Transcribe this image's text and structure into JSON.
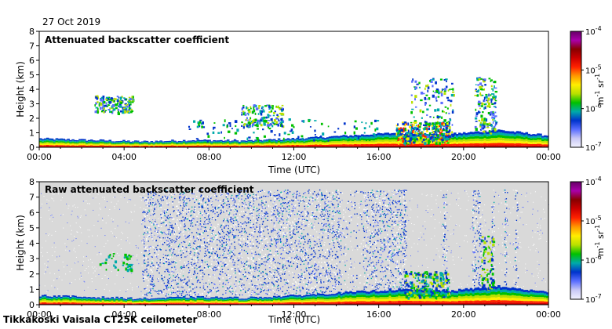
{
  "date": "27 Oct 2019",
  "footer": "Tikkakoski Vaisala CT25K ceilometer",
  "colorbar": {
    "unit_m": "m",
    "unit_m_exp": "-1",
    "unit_sr": " sr",
    "unit_sr_exp": "-1",
    "ticks": [
      {
        "base": "10",
        "exp": "-4",
        "value": 0.0001
      },
      {
        "base": "10",
        "exp": "-5",
        "value": 1e-05
      },
      {
        "base": "10",
        "exp": "-6",
        "value": 1e-06
      },
      {
        "base": "10",
        "exp": "-7",
        "value": 1e-07
      }
    ],
    "colors": [
      "#f2f2ff",
      "#c8c8f5",
      "#5a6eff",
      "#0033cc",
      "#00aaaa",
      "#00c000",
      "#b8e000",
      "#ffee00",
      "#ff9900",
      "#ff2200",
      "#cc0000",
      "#880000",
      "#aa00aa",
      "#660066"
    ]
  },
  "chart_data": [
    {
      "type": "heatmap",
      "title": "Attenuated backscatter coefficient",
      "xlabel": "Time (UTC)",
      "ylabel": "Height (km)",
      "xlim": [
        0,
        24
      ],
      "ylim": [
        0,
        8
      ],
      "x_ticks": [
        "00:00",
        "04:00",
        "08:00",
        "12:00",
        "16:00",
        "20:00",
        "00:00"
      ],
      "y_ticks": [
        "0",
        "1",
        "2",
        "3",
        "4",
        "5",
        "6",
        "7",
        "8"
      ],
      "background": "#ffffff",
      "features": [
        {
          "name": "boundary layer",
          "t_start": 0,
          "t_end": 24,
          "h_top_km": [
            0.6,
            0.5,
            0.4,
            0.5,
            0.45,
            0.6,
            0.8,
            1.0,
            0.9,
            1.2,
            0.8
          ]
        },
        {
          "name": "mid cloud",
          "t_start": 2.6,
          "t_end": 4.4,
          "h_bottom_km": 2.4,
          "h_top_km": 3.6
        },
        {
          "name": "mid cloud",
          "t_start": 9.5,
          "t_end": 11.5,
          "h_bottom_km": 1.5,
          "h_top_km": 3.0
        },
        {
          "name": "cloud",
          "t_start": 17.5,
          "t_end": 19.5,
          "h_bottom_km": 0.5,
          "h_top_km": 4.8
        },
        {
          "name": "cloud",
          "t_start": 20.5,
          "t_end": 21.5,
          "h_bottom_km": 1.0,
          "h_top_km": 4.9
        }
      ]
    },
    {
      "type": "heatmap",
      "title": "Raw attenuated backscatter coefficient",
      "xlabel": "Time (UTC)",
      "ylabel": "Height (km)",
      "xlim": [
        0,
        24
      ],
      "ylim": [
        0,
        8
      ],
      "x_ticks": [
        "00:00",
        "04:00",
        "08:00",
        "12:00",
        "16:00",
        "20:00",
        "00:00"
      ],
      "y_ticks": [
        "0",
        "1",
        "2",
        "3",
        "4",
        "5",
        "6",
        "7",
        "8"
      ],
      "background": "#d9d9d9",
      "noise_top_km": 7.5,
      "noise_segments": [
        {
          "t_start": 4.85,
          "t_end": 14.2,
          "density": 0.5
        },
        {
          "t_start": 14.2,
          "t_end": 15.2,
          "density": 0.15
        },
        {
          "t_start": 15.25,
          "t_end": 17.3,
          "density": 0.55
        },
        {
          "t_start": 19.0,
          "t_end": 19.2,
          "density": 0.55
        },
        {
          "t_start": 20.4,
          "t_end": 20.85,
          "density": 0.55
        },
        {
          "t_start": 21.3,
          "t_end": 21.45,
          "density": 0.5
        },
        {
          "t_start": 21.9,
          "t_end": 22.05,
          "density": 0.5
        },
        {
          "t_start": 22.4,
          "t_end": 22.55,
          "density": 0.5
        }
      ]
    }
  ]
}
